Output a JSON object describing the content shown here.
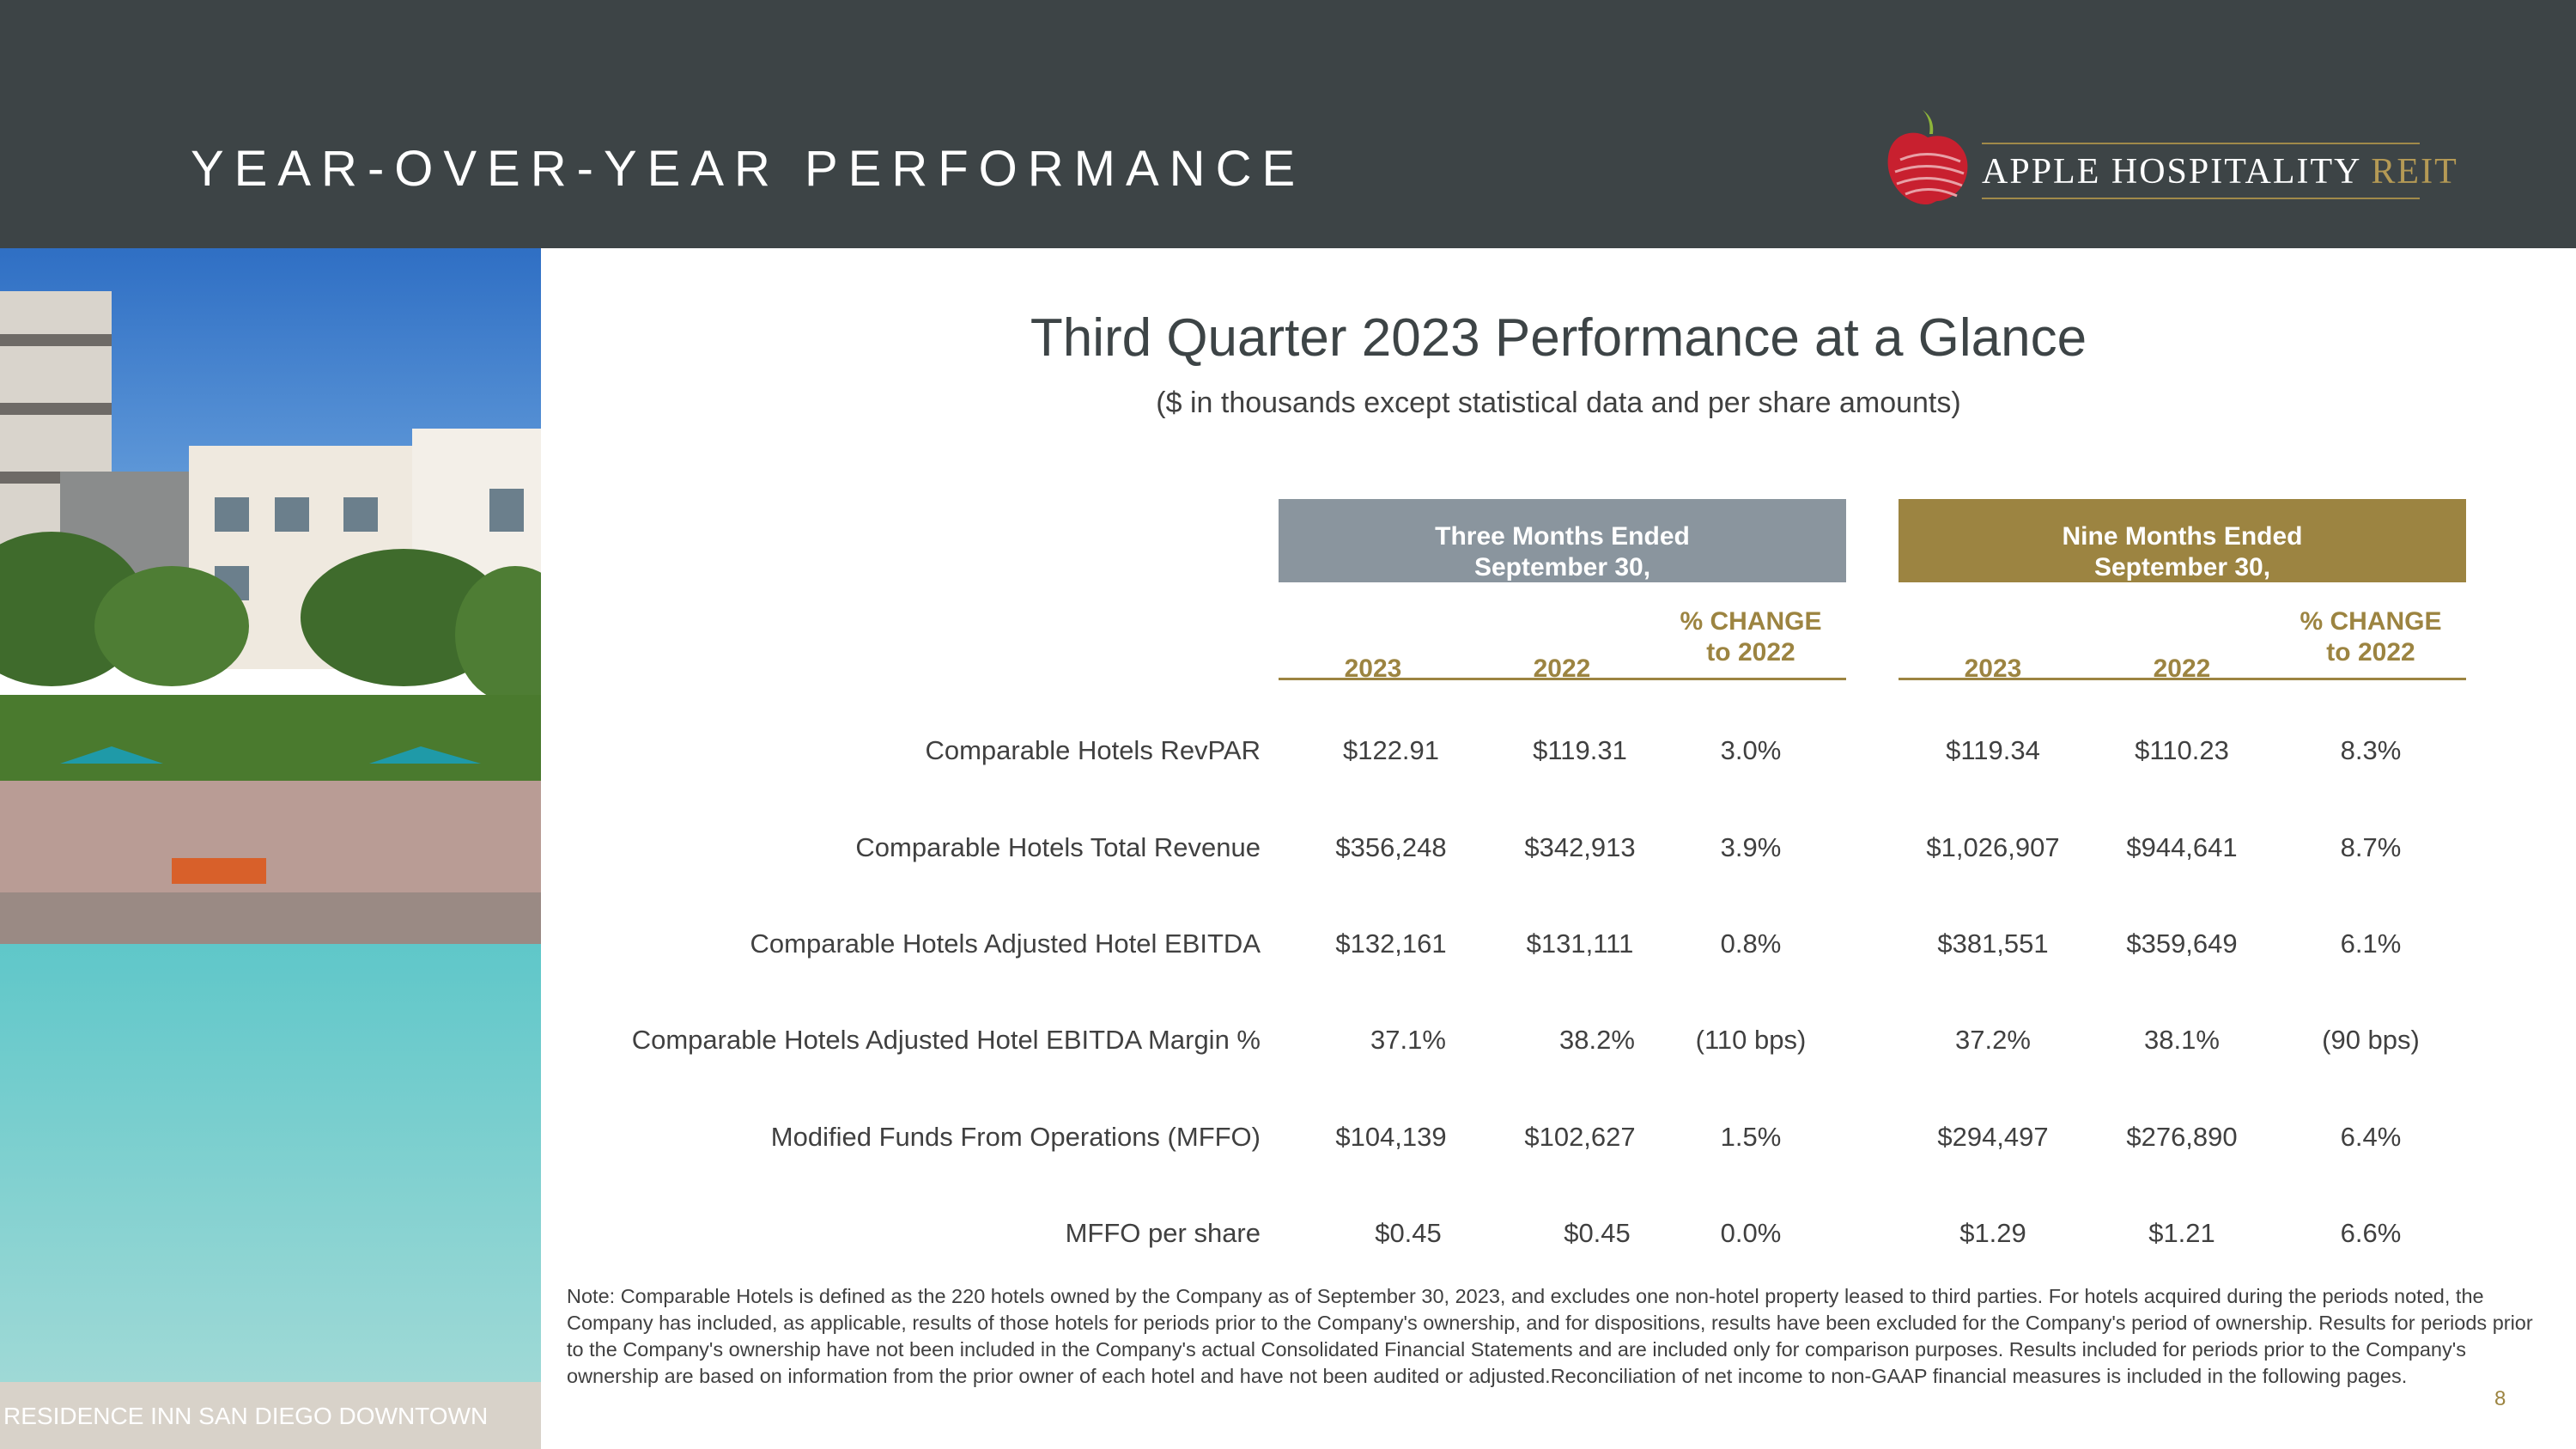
{
  "header": {
    "title": "YEAR-OVER-YEAR PERFORMANCE",
    "logo": {
      "brand": "APPLE HOSPITALITY",
      "suffix": "REIT"
    }
  },
  "photo": {
    "caption": "RESIDENCE INN SAN DIEGO DOWNTOWN"
  },
  "main": {
    "title": "Third Quarter 2023 Performance at a Glance",
    "subtitle": "($ in thousands except statistical data and per share amounts)"
  },
  "table": {
    "groups": [
      {
        "line1": "Three Months Ended",
        "line2": "September 30,"
      },
      {
        "line1": "Nine Months Ended",
        "line2": "September 30,"
      }
    ],
    "columns": [
      {
        "line1": "",
        "line2": "2023"
      },
      {
        "line1": "",
        "line2": "2022"
      },
      {
        "line1": "% CHANGE",
        "line2": "to 2022"
      },
      {
        "line1": "",
        "line2": "2023"
      },
      {
        "line1": "",
        "line2": "2022"
      },
      {
        "line1": "% CHANGE",
        "line2": "to 2022"
      }
    ],
    "rows": [
      {
        "label": "Comparable Hotels RevPAR",
        "values": [
          "$122.91",
          "$119.31",
          "3.0%",
          "$119.34",
          "$110.23",
          "8.3%"
        ]
      },
      {
        "label": "Comparable Hotels Total Revenue",
        "values": [
          "$356,248",
          "$342,913",
          "3.9%",
          "$1,026,907",
          "$944,641",
          "8.7%"
        ]
      },
      {
        "label": "Comparable Hotels Adjusted Hotel EBITDA",
        "values": [
          "$132,161",
          "$131,111",
          "0.8%",
          "$381,551",
          "$359,649",
          "6.1%"
        ]
      },
      {
        "label": "Comparable Hotels Adjusted Hotel EBITDA Margin %",
        "values": [
          "37.1%",
          "38.2%",
          "(110 bps)",
          "37.2%",
          "38.1%",
          "(90 bps)"
        ]
      },
      {
        "label": "Modified Funds From Operations (MFFO)",
        "values": [
          "$104,139",
          "$102,627",
          "1.5%",
          "$294,497",
          "$276,890",
          "6.4%"
        ]
      },
      {
        "label": "MFFO per share",
        "values": [
          "$0.45",
          "$0.45",
          "0.0%",
          "$1.29",
          "$1.21",
          "6.6%"
        ]
      }
    ]
  },
  "note": "Note:  Comparable Hotels is defined as the 220 hotels owned by the Company as of September 30, 2023, and excludes one non-hotel property leased to third parties. For hotels acquired during the periods noted, the Company has included, as applicable, results of those hotels for periods prior to the Company's ownership, and for dispositions, results have been excluded for the Company's period of ownership. Results for periods prior to the Company's ownership have not been included in the Company's actual Consolidated Financial Statements and are included only for comparison purposes. Results included for periods prior to the Company's ownership are based on information from the prior owner of each hotel and have not been audited or adjusted.Reconciliation of net income to non-GAAP financial measures is included in the following pages.",
  "page_number": "8",
  "colors": {
    "header_bg": "#3d4446",
    "gold": "#9c8441",
    "slate": "#8a959e"
  }
}
